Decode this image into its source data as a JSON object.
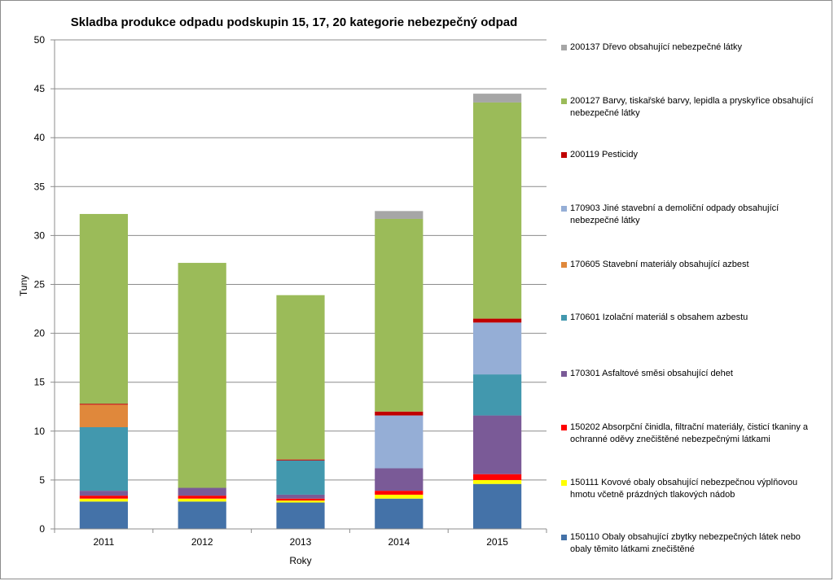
{
  "chart_data": {
    "type": "bar",
    "stacked": true,
    "title": "Skladba produkce odpadu podskupin 15, 17, 20 kategorie nebezpečný odpad",
    "xlabel": "Roky",
    "ylabel": "Tuny",
    "ylim": [
      0,
      50
    ],
    "yticks": [
      "0",
      "5",
      "10",
      "15",
      "20",
      "25",
      "30",
      "35",
      "40",
      "45",
      "50"
    ],
    "categories": [
      "2011",
      "2012",
      "2013",
      "2014",
      "2015"
    ],
    "legend_position": "right",
    "series": [
      {
        "name": "150110 Obaly obsahující zbytky nebezpečných látek nebo obaly těmito látkami znečištěné",
        "color": "#4472A8",
        "values": [
          2.8,
          2.8,
          2.7,
          3.1,
          4.6
        ]
      },
      {
        "name": "150111 Kovové obaly obsahující nebezpečnou výplňovou hmotu včetně prázdných tlakových nádob",
        "color": "#FFFF00",
        "values": [
          0.3,
          0.3,
          0.2,
          0.4,
          0.4
        ]
      },
      {
        "name": "150202 Absorpční činidla, filtrační materiály, čisticí tkaniny a ochranné oděvy znečištěné nebezpečnými látkami",
        "color": "#FF0000",
        "values": [
          0.3,
          0.3,
          0.2,
          0.4,
          0.6
        ]
      },
      {
        "name": "170301 Asfaltové směsi obsahující dehet",
        "color": "#7A5A97",
        "values": [
          0.5,
          0.8,
          0.4,
          2.3,
          6.0
        ]
      },
      {
        "name": "170601 Izolační materiál s obsahem azbestu",
        "color": "#4298AE",
        "values": [
          6.5,
          0,
          3.5,
          0,
          4.2
        ]
      },
      {
        "name": "170605 Stavební materiály obsahující azbest",
        "color": "#E0883B",
        "values": [
          2.3,
          0,
          0,
          0,
          0
        ]
      },
      {
        "name": "170903 Jiné stavební a demoliční odpady obsahující nebezpečné látky",
        "color": "#95AED6",
        "values": [
          0,
          0,
          0,
          5.4,
          5.3
        ]
      },
      {
        "name": "200119 Pesticidy",
        "color": "#C00000",
        "values": [
          0.1,
          0,
          0.1,
          0.4,
          0.4
        ]
      },
      {
        "name": "200127 Barvy, tiskařské barvy, lepidla a pryskyřice obsahující nebezpečné látky",
        "color": "#9BBB59",
        "values": [
          19.4,
          23.0,
          16.8,
          19.7,
          22.1
        ]
      },
      {
        "name": "200137 Dřevo obsahující nebezpečné látky",
        "color": "#A6A6A6",
        "values": [
          0,
          0,
          0,
          0.8,
          0.9
        ]
      }
    ]
  }
}
